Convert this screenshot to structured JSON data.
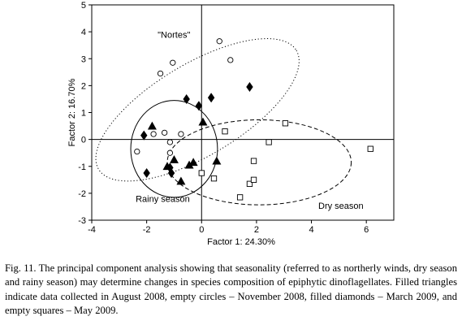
{
  "chart_data": {
    "type": "scatter",
    "title": "",
    "xlabel": "Factor 1: 24.30%",
    "ylabel": "Factor 2: 16.70%",
    "xlim": [
      -4,
      7
    ],
    "ylim": [
      -3,
      5
    ],
    "xticks": [
      -4,
      -2,
      0,
      2,
      4,
      6
    ],
    "yticks": [
      -3,
      -2,
      -1,
      0,
      1,
      2,
      3,
      4,
      5
    ],
    "grid": false,
    "series": [
      {
        "marker": "filled-triangle",
        "points": [
          [
            -1.8,
            0.5
          ],
          [
            -1.0,
            -0.75
          ],
          [
            -1.25,
            -1.0
          ],
          [
            -0.75,
            -1.55
          ],
          [
            -0.45,
            -0.95
          ],
          [
            -0.3,
            -0.85
          ],
          [
            0.05,
            0.65
          ],
          [
            0.55,
            -0.8
          ]
        ]
      },
      {
        "marker": "empty-circle",
        "points": [
          [
            -1.5,
            2.45
          ],
          [
            -1.05,
            2.85
          ],
          [
            0.65,
            3.65
          ],
          [
            1.05,
            2.95
          ],
          [
            -2.35,
            -0.45
          ],
          [
            -1.75,
            0.2
          ],
          [
            -1.35,
            0.25
          ],
          [
            -1.15,
            -0.1
          ],
          [
            -1.15,
            -0.5
          ],
          [
            -0.75,
            0.2
          ]
        ]
      },
      {
        "marker": "filled-diamond",
        "points": [
          [
            -2.1,
            0.15
          ],
          [
            -2.0,
            -1.25
          ],
          [
            -1.15,
            -1.05
          ],
          [
            -1.1,
            -1.25
          ],
          [
            -0.55,
            1.5
          ],
          [
            -0.1,
            1.25
          ],
          [
            0.35,
            1.55
          ],
          [
            1.75,
            1.95
          ]
        ]
      },
      {
        "marker": "empty-square",
        "points": [
          [
            0.0,
            -1.25
          ],
          [
            0.45,
            -1.45
          ],
          [
            0.85,
            0.3
          ],
          [
            1.4,
            -2.15
          ],
          [
            1.75,
            -1.65
          ],
          [
            1.9,
            -1.5
          ],
          [
            1.9,
            -0.8
          ],
          [
            2.45,
            -0.1
          ],
          [
            3.05,
            0.6
          ],
          [
            6.15,
            -0.35
          ]
        ]
      }
    ],
    "ellipses": [
      {
        "name": "Nortes",
        "cx": -0.15,
        "cy": 1.1,
        "rx": 4.2,
        "ry": 1.7,
        "angle_deg": 31,
        "style": "dotted"
      },
      {
        "name": "Rainy season",
        "cx": -1.0,
        "cy": -0.35,
        "rx": 1.58,
        "ry": 1.8,
        "angle_deg": 0,
        "style": "solid"
      },
      {
        "name": "Dry season",
        "cx": 2.1,
        "cy": -0.85,
        "rx": 3.35,
        "ry": 1.58,
        "angle_deg": 0,
        "style": "dashed"
      }
    ],
    "annotations": [
      {
        "text": "\"Nortes\"",
        "x": -1.6,
        "y": 3.9
      },
      {
        "text": "Rainy season",
        "x": -2.4,
        "y": -2.2
      },
      {
        "text": "Dry season",
        "x": 4.25,
        "y": -2.45
      }
    ]
  },
  "caption": "Fig. 11. The principal component analysis showing that seasonality (referred to as northerly winds, dry season and rainy season) may determine changes in species composition of epiphytic dinoflagellates. Filled triangles indicate data collected in August 2008, empty circles – November 2008, filled diamonds – March 2009, and empty squares – May 2009."
}
